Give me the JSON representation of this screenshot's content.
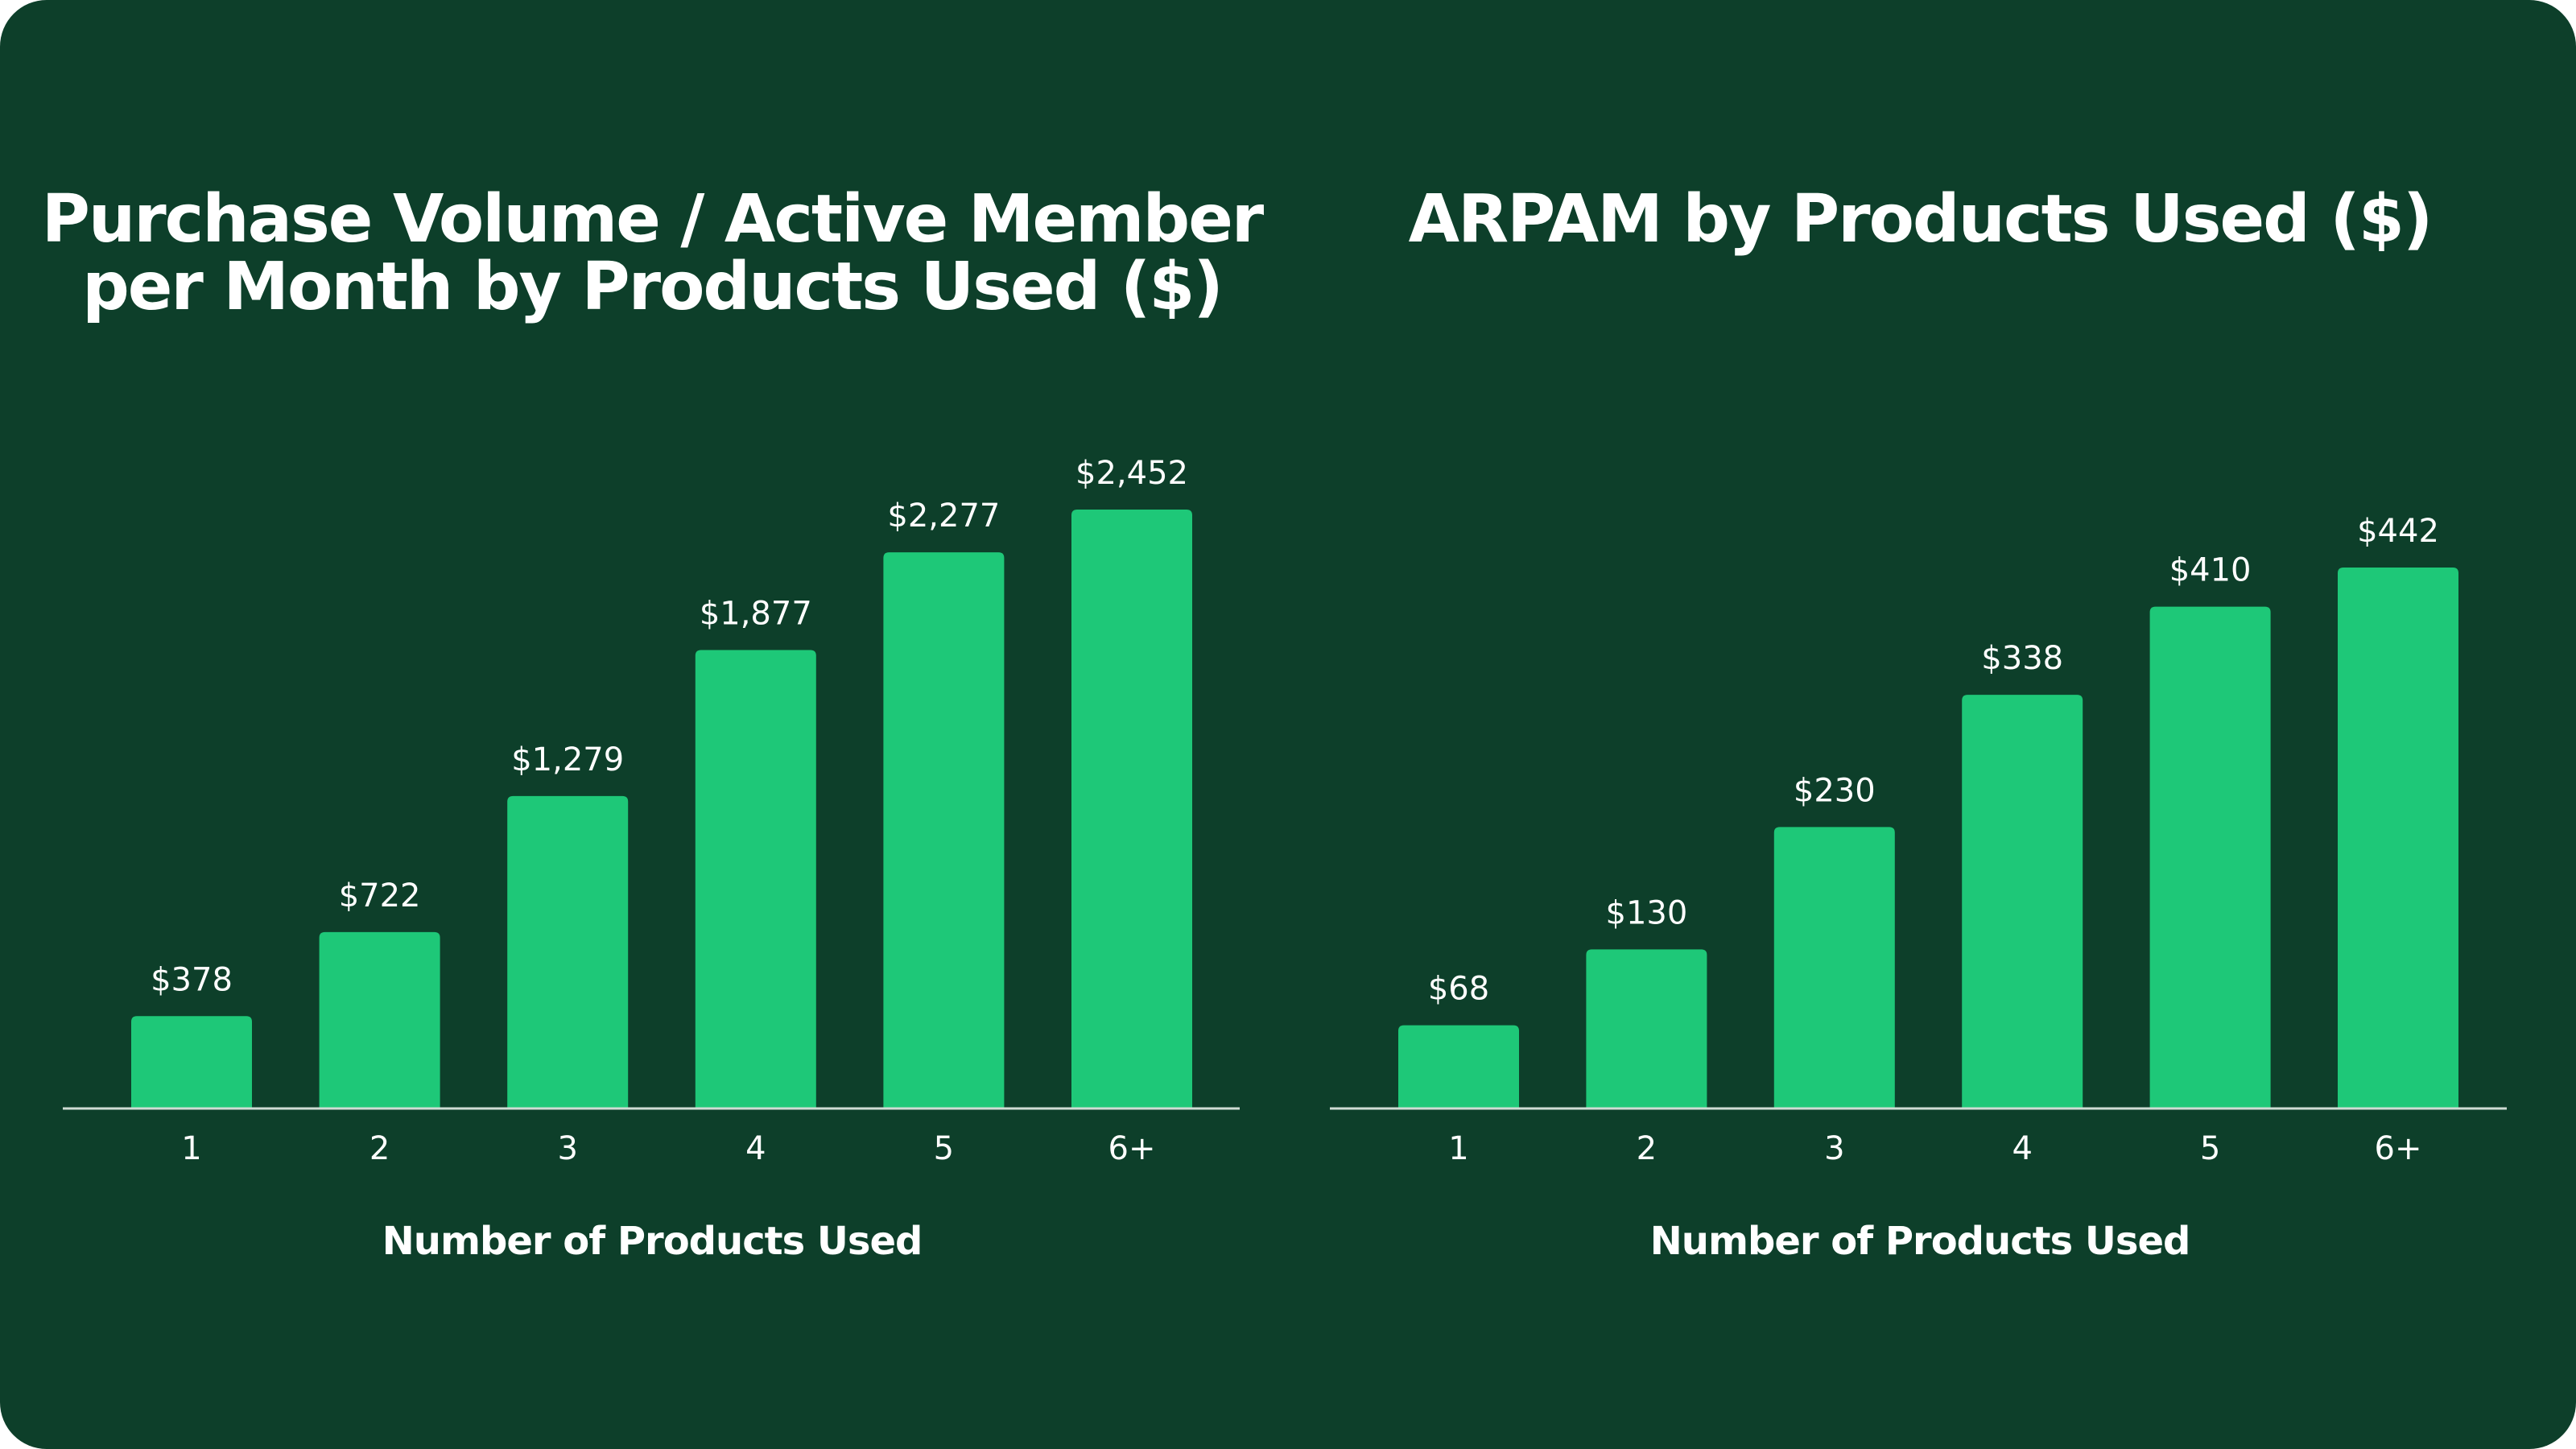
{
  "colors": {
    "background": "#0d3f2a",
    "bar": "#1ec878",
    "text": "#ffffff",
    "axis": "#cfdcd4"
  },
  "chart_data": [
    {
      "type": "bar",
      "title_lines": [
        "Purchase Volume / Active Member",
        "per Month by Products Used ($)"
      ],
      "categories": [
        "1",
        "2",
        "3",
        "4",
        "5",
        "6+"
      ],
      "values": [
        378,
        722,
        1279,
        1877,
        2277,
        2452
      ],
      "value_labels": [
        "$378",
        "$722",
        "$1,279",
        "$1,877",
        "$2,277",
        "$2,452"
      ],
      "xlabel": "Number of Products Used",
      "ylabel": "",
      "ylim": [
        0,
        2452
      ],
      "grid": false
    },
    {
      "type": "bar",
      "title_lines": [
        "ARPAM by Products Used ($)"
      ],
      "categories": [
        "1",
        "2",
        "3",
        "4",
        "5",
        "6+"
      ],
      "values": [
        68,
        130,
        230,
        338,
        410,
        442
      ],
      "value_labels": [
        "$68",
        "$130",
        "$230",
        "$338",
        "$410",
        "$442"
      ],
      "xlabel": "Number of Products Used",
      "ylabel": "",
      "ylim": [
        0,
        442
      ],
      "grid": false
    }
  ]
}
